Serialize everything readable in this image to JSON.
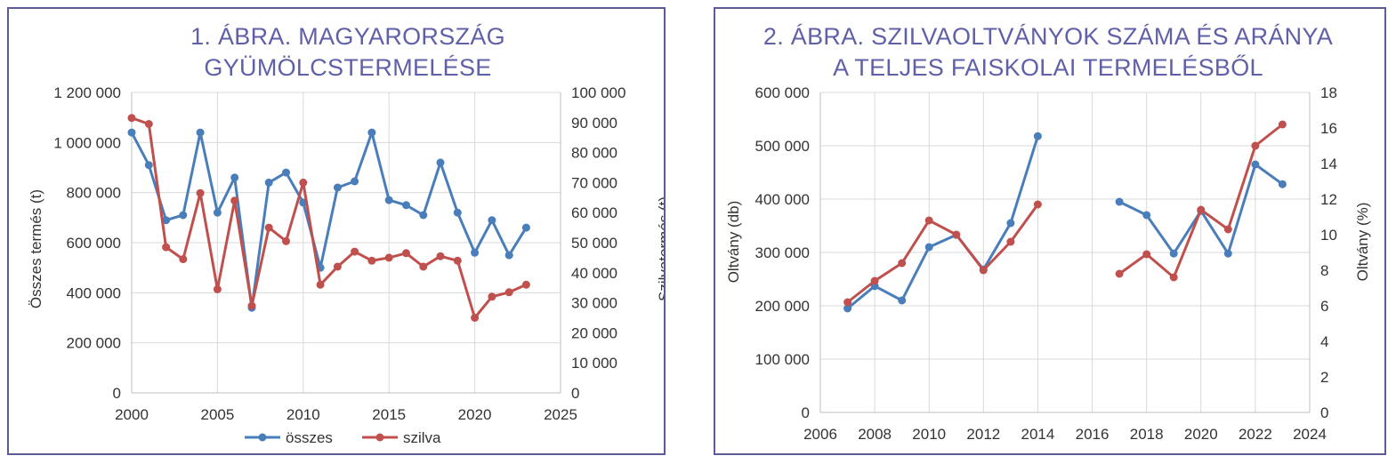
{
  "colors": {
    "blue": "#4a7ebb",
    "red": "#c0504d",
    "title": "#6060a8"
  },
  "chart_data": [
    {
      "type": "line",
      "title_lines": [
        "1. ÁBRA. MAGYARORSZÁG",
        "GYÜMÖLCSTERMELÉSE"
      ],
      "ylabel": "Összes termés (t)",
      "y2label": "Szilvatermés (t)",
      "xlim": [
        2000,
        2025
      ],
      "ylim": [
        0,
        1200000
      ],
      "y2lim": [
        0,
        100000
      ],
      "x_ticks": [
        "2000",
        "2005",
        "2010",
        "2015",
        "2020",
        "2025"
      ],
      "y_ticks": [
        "0",
        "200 000",
        "400 000",
        "600 000",
        "800 000",
        "1 000 000",
        "1 200 000"
      ],
      "y2_ticks": [
        "0",
        "10 000",
        "20 000",
        "30 000",
        "40 000",
        "50 000",
        "60 000",
        "70 000",
        "80 000",
        "90 000",
        "100 000"
      ],
      "legend": "bottom",
      "series": [
        {
          "name": "összes",
          "axis": "left",
          "color": "#4a7ebb",
          "x": [
            2000,
            2001,
            2002,
            2003,
            2004,
            2005,
            2006,
            2007,
            2008,
            2009,
            2010,
            2011,
            2012,
            2013,
            2014,
            2015,
            2016,
            2017,
            2018,
            2019,
            2020,
            2021,
            2022,
            2023
          ],
          "y": [
            1040000,
            910000,
            690000,
            710000,
            1040000,
            720000,
            860000,
            340000,
            840000,
            880000,
            760000,
            500000,
            820000,
            845000,
            1040000,
            770000,
            750000,
            710000,
            920000,
            720000,
            560000,
            690000,
            550000,
            660000
          ]
        },
        {
          "name": "szilva",
          "axis": "right",
          "color": "#c0504d",
          "x": [
            2000,
            2001,
            2002,
            2003,
            2004,
            2005,
            2006,
            2007,
            2008,
            2009,
            2010,
            2011,
            2012,
            2013,
            2014,
            2015,
            2016,
            2017,
            2018,
            2019,
            2020,
            2021,
            2022,
            2023
          ],
          "y": [
            91500,
            89500,
            48500,
            44500,
            66500,
            34500,
            64000,
            29000,
            55000,
            50500,
            70000,
            36000,
            42000,
            47000,
            44000,
            45000,
            46500,
            42000,
            45500,
            44000,
            25000,
            32000,
            33500,
            36000
          ]
        }
      ]
    },
    {
      "type": "line",
      "title_lines": [
        "2. ÁBRA. SZILVAOLTVÁNYOK SZÁMA ÉS ARÁNYA",
        "A TELJES FAISKOLAI TERMELÉSBŐL"
      ],
      "ylabel": "Oltvány (db)",
      "y2label": "Oltvány (%)",
      "xlim": [
        2006,
        2024
      ],
      "ylim": [
        0,
        600000
      ],
      "y2lim": [
        0,
        18
      ],
      "x_ticks": [
        "2006",
        "2008",
        "2010",
        "2012",
        "2014",
        "2016",
        "2018",
        "2020",
        "2022",
        "2024"
      ],
      "y_ticks": [
        "0",
        "100 000",
        "200 000",
        "300 000",
        "400 000",
        "500 000",
        "600 000"
      ],
      "y2_ticks": [
        "0",
        "2",
        "4",
        "6",
        "8",
        "10",
        "12",
        "14",
        "16",
        "18"
      ],
      "series": [
        {
          "axis": "left",
          "color": "#4a7ebb",
          "segments": [
            {
              "x": [
                2007,
                2008,
                2009,
                2010,
                2011,
                2012,
                2013,
                2014
              ],
              "y": [
                195000,
                237000,
                210000,
                310000,
                333000,
                268000,
                355000,
                518000
              ]
            },
            {
              "x": [
                2017,
                2018,
                2019,
                2020,
                2021,
                2022,
                2023
              ],
              "y": [
                395000,
                370000,
                298000,
                378000,
                298000,
                465000,
                428000
              ]
            }
          ]
        },
        {
          "axis": "right",
          "color": "#c0504d",
          "segments": [
            {
              "x": [
                2007,
                2008,
                2009,
                2010,
                2011,
                2012,
                2013,
                2014
              ],
              "y": [
                6.2,
                7.4,
                8.4,
                10.8,
                10.0,
                8.0,
                9.6,
                11.7
              ]
            },
            {
              "x": [
                2017,
                2018,
                2019,
                2020,
                2021,
                2022,
                2023
              ],
              "y": [
                7.8,
                8.9,
                7.6,
                11.4,
                10.3,
                15.0,
                16.2
              ]
            }
          ]
        }
      ]
    }
  ]
}
